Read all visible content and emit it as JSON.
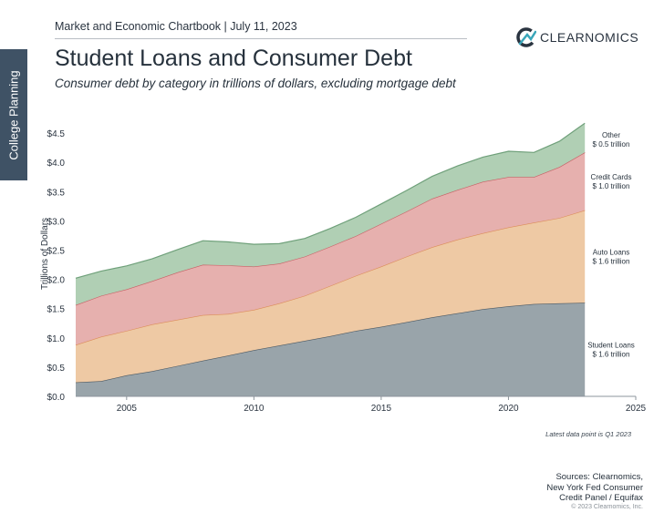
{
  "sidebar": {
    "label": "College Planning"
  },
  "header": {
    "chartbook": "Market and Economic Chartbook | July 11, 2023",
    "logo_text": "CLEARNOMICS"
  },
  "title": "Student Loans and Consumer Debt",
  "subtitle": "Consumer debt by category in trillions of dollars, excluding mortgage debt",
  "footer": {
    "note": "Latest data point is Q1 2023",
    "sources": [
      "Sources: Clearnomics,",
      "New York Fed Consumer",
      "Credit Panel / Equifax"
    ],
    "copyright": "© 2023 Clearnomics, Inc."
  },
  "colors": {
    "student_loans": "#99a4aa",
    "auto_loans": "#eec9a4",
    "credit_cards": "#e6b0ae",
    "other": "#b0cfb4",
    "student_edge": "#4c5963",
    "auto_edge": "#dc8d5a",
    "cards_edge": "#c85f64",
    "other_edge": "#6fa07a"
  },
  "chart_data": {
    "type": "area",
    "stacked": true,
    "title": "Student Loans and Consumer Debt",
    "ylabel": "Trillions of Dollars",
    "ylim": [
      0,
      5.0
    ],
    "yticks": [
      0,
      0.5,
      1.0,
      1.5,
      2.0,
      2.5,
      3.0,
      3.5,
      4.0,
      4.5
    ],
    "ytick_labels": [
      "$0.0",
      "$0.5",
      "$1.0",
      "$1.5",
      "$2.0",
      "$2.5",
      "$3.0",
      "$3.5",
      "$4.0",
      "$4.5"
    ],
    "xlim": [
      2003,
      2025
    ],
    "xticks": [
      2005,
      2010,
      2015,
      2020,
      2025
    ],
    "x": [
      2003,
      2004,
      2005,
      2006,
      2007,
      2008,
      2009,
      2010,
      2011,
      2012,
      2013,
      2014,
      2015,
      2016,
      2017,
      2018,
      2019,
      2020,
      2021,
      2022,
      2023
    ],
    "series": [
      {
        "name": "Student Loans",
        "values": [
          0.24,
          0.26,
          0.36,
          0.43,
          0.52,
          0.61,
          0.7,
          0.79,
          0.87,
          0.95,
          1.03,
          1.12,
          1.19,
          1.27,
          1.35,
          1.42,
          1.49,
          1.54,
          1.58,
          1.59,
          1.6
        ]
      },
      {
        "name": "Auto Loans",
        "values": [
          0.64,
          0.76,
          0.76,
          0.8,
          0.79,
          0.78,
          0.71,
          0.69,
          0.72,
          0.77,
          0.86,
          0.94,
          1.03,
          1.12,
          1.2,
          1.26,
          1.3,
          1.35,
          1.39,
          1.46,
          1.58
        ]
      },
      {
        "name": "Credit Cards",
        "values": [
          0.68,
          0.7,
          0.71,
          0.74,
          0.81,
          0.86,
          0.83,
          0.74,
          0.68,
          0.67,
          0.67,
          0.68,
          0.73,
          0.77,
          0.83,
          0.85,
          0.88,
          0.86,
          0.78,
          0.87,
          0.99
        ]
      },
      {
        "name": "Other",
        "values": [
          0.46,
          0.42,
          0.4,
          0.38,
          0.39,
          0.41,
          0.4,
          0.38,
          0.34,
          0.31,
          0.31,
          0.32,
          0.34,
          0.36,
          0.38,
          0.41,
          0.42,
          0.44,
          0.42,
          0.44,
          0.5
        ]
      }
    ],
    "end_labels": [
      {
        "series": "Other",
        "line1": "Other",
        "line2": "$ 0.5 trillion"
      },
      {
        "series": "Credit Cards",
        "line1": "Credit Cards",
        "line2": "$ 1.0 trillion"
      },
      {
        "series": "Auto Loans",
        "line1": "Auto Loans",
        "line2": "$ 1.6 trillion"
      },
      {
        "series": "Student Loans",
        "line1": "Student Loans",
        "line2": "$ 1.6 trillion"
      }
    ]
  }
}
